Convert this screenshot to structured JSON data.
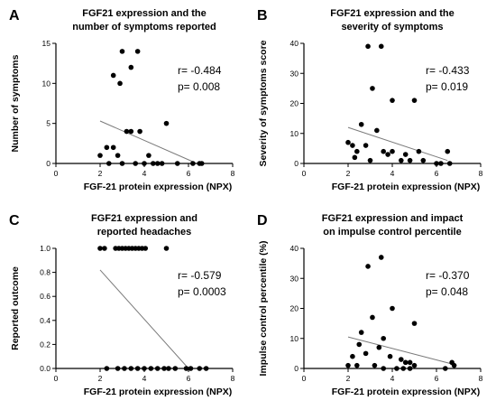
{
  "chart_data": [
    {
      "type": "scatter",
      "letter": "A",
      "title_lines": [
        "FGF21 expression and the",
        "number of symptoms reported"
      ],
      "xlabel": "FGF-21 protein expression (NPX)",
      "ylabel": "Number of symptoms",
      "xlim": [
        0,
        8
      ],
      "ylim": [
        0,
        15
      ],
      "xticks": [
        "0",
        "2",
        "4",
        "6",
        "8"
      ],
      "yticks": [
        "0",
        "5",
        "10",
        "15"
      ],
      "r": "r= -0.484",
      "p": "p= 0.008",
      "grid": false,
      "trend": [
        [
          2.0,
          5.3
        ],
        [
          6.3,
          0.1
        ]
      ],
      "points": [
        [
          2.6,
          11
        ],
        [
          3.0,
          14
        ],
        [
          3.4,
          12
        ],
        [
          3.7,
          14
        ],
        [
          2.9,
          10
        ],
        [
          3.2,
          4
        ],
        [
          3.4,
          4
        ],
        [
          3.8,
          4
        ],
        [
          5.0,
          5
        ],
        [
          2.3,
          2
        ],
        [
          2.6,
          2
        ],
        [
          2.8,
          1
        ],
        [
          2.0,
          1
        ],
        [
          4.2,
          1
        ],
        [
          2.4,
          0
        ],
        [
          3.0,
          0
        ],
        [
          3.6,
          0
        ],
        [
          4.0,
          0
        ],
        [
          4.4,
          0
        ],
        [
          4.6,
          0
        ],
        [
          4.8,
          0
        ],
        [
          5.5,
          0
        ],
        [
          6.2,
          0
        ],
        [
          6.5,
          0
        ],
        [
          6.6,
          0
        ]
      ]
    },
    {
      "type": "scatter",
      "letter": "B",
      "title_lines": [
        "FGF21 expression and the",
        "severity of symptoms"
      ],
      "xlabel": "FGF-21 protein expression (NPX)",
      "ylabel": "Severity of symptoms score",
      "xlim": [
        0,
        8
      ],
      "ylim": [
        0,
        40
      ],
      "xticks": [
        "0",
        "2",
        "4",
        "6",
        "8"
      ],
      "yticks": [
        "0",
        "10",
        "20",
        "30",
        "40"
      ],
      "r": "r= -0.433",
      "p": "p= 0.019",
      "grid": false,
      "trend": [
        [
          2.0,
          12
        ],
        [
          6.5,
          1
        ]
      ],
      "points": [
        [
          2.9,
          39
        ],
        [
          3.5,
          39
        ],
        [
          3.1,
          25
        ],
        [
          4.0,
          21
        ],
        [
          5.0,
          21
        ],
        [
          2.6,
          13
        ],
        [
          3.3,
          11
        ],
        [
          2.0,
          7
        ],
        [
          2.2,
          6
        ],
        [
          2.8,
          6
        ],
        [
          2.4,
          4
        ],
        [
          3.6,
          4
        ],
        [
          3.8,
          3
        ],
        [
          4.0,
          4
        ],
        [
          4.6,
          3
        ],
        [
          5.2,
          4
        ],
        [
          6.5,
          4
        ],
        [
          2.3,
          2
        ],
        [
          3.0,
          1
        ],
        [
          4.4,
          1
        ],
        [
          4.8,
          1
        ],
        [
          5.4,
          1
        ],
        [
          6.0,
          0
        ],
        [
          6.2,
          0
        ],
        [
          6.6,
          0
        ]
      ]
    },
    {
      "type": "scatter",
      "letter": "C",
      "title_lines": [
        "FGF21 expression and",
        "reported headaches"
      ],
      "xlabel": "FGF-21 protein expression (NPX)",
      "ylabel": "Reported outcome",
      "xlim": [
        0,
        8
      ],
      "ylim": [
        0,
        1.0
      ],
      "xticks": [
        "0",
        "2",
        "4",
        "6",
        "8"
      ],
      "yticks": [
        "0.0",
        "0.2",
        "0.4",
        "0.6",
        "0.8",
        "1.0"
      ],
      "r": "r= -0.579",
      "p": "p= 0.0003",
      "grid": false,
      "trend": [
        [
          2.0,
          0.82
        ],
        [
          6.0,
          0.0
        ]
      ],
      "points": [
        [
          2.0,
          1
        ],
        [
          2.2,
          1
        ],
        [
          2.7,
          1
        ],
        [
          2.85,
          1
        ],
        [
          3.0,
          1
        ],
        [
          3.15,
          1
        ],
        [
          3.3,
          1
        ],
        [
          3.45,
          1
        ],
        [
          3.6,
          1
        ],
        [
          3.75,
          1
        ],
        [
          3.9,
          1
        ],
        [
          4.05,
          1
        ],
        [
          5.0,
          1
        ],
        [
          2.3,
          0
        ],
        [
          2.8,
          0
        ],
        [
          3.1,
          0
        ],
        [
          3.4,
          0
        ],
        [
          3.7,
          0
        ],
        [
          4.0,
          0
        ],
        [
          4.3,
          0
        ],
        [
          4.6,
          0
        ],
        [
          4.9,
          0
        ],
        [
          5.1,
          0
        ],
        [
          5.4,
          0
        ],
        [
          5.9,
          0
        ],
        [
          6.1,
          0
        ],
        [
          6.5,
          0
        ],
        [
          6.8,
          0
        ]
      ]
    },
    {
      "type": "scatter",
      "letter": "D",
      "title_lines": [
        "FGF21 expression and impact",
        "on impulse control percentile"
      ],
      "xlabel": "FGF-21 protein expression (NPX)",
      "ylabel": "Impulse control percentile (%)",
      "xlim": [
        0,
        8
      ],
      "ylim": [
        0,
        40
      ],
      "xticks": [
        "0",
        "2",
        "4",
        "6",
        "8"
      ],
      "yticks": [
        "0",
        "10",
        "20",
        "30",
        "40"
      ],
      "r": "r= -0.370",
      "p": "p= 0.048",
      "grid": false,
      "trend": [
        [
          2.0,
          10.5
        ],
        [
          6.7,
          1.5
        ]
      ],
      "points": [
        [
          3.5,
          37
        ],
        [
          2.9,
          34
        ],
        [
          4.0,
          20
        ],
        [
          3.1,
          17
        ],
        [
          5.0,
          15
        ],
        [
          2.6,
          12
        ],
        [
          3.6,
          10
        ],
        [
          2.5,
          8
        ],
        [
          3.4,
          7
        ],
        [
          2.8,
          5
        ],
        [
          2.2,
          4
        ],
        [
          3.9,
          4
        ],
        [
          4.4,
          3
        ],
        [
          4.6,
          2
        ],
        [
          4.8,
          2
        ],
        [
          5.0,
          1
        ],
        [
          2.0,
          1
        ],
        [
          2.4,
          1
        ],
        [
          3.2,
          1
        ],
        [
          3.6,
          0
        ],
        [
          4.2,
          0
        ],
        [
          4.5,
          0
        ],
        [
          4.8,
          0
        ],
        [
          6.4,
          0
        ],
        [
          6.7,
          2
        ],
        [
          6.8,
          1
        ]
      ]
    }
  ]
}
